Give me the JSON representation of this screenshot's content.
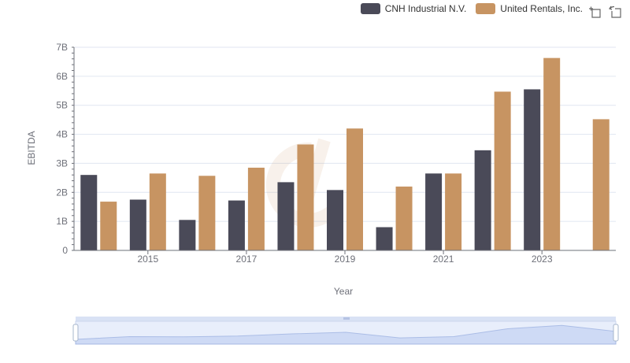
{
  "chart_data": {
    "type": "bar",
    "x": [
      2014,
      2015,
      2016,
      2017,
      2018,
      2019,
      2020,
      2021,
      2022,
      2023,
      2024
    ],
    "xticks": [
      "2015",
      "2017",
      "2019",
      "2021",
      "2023"
    ],
    "yticks": [
      "0",
      "1B",
      "2B",
      "3B",
      "4B",
      "5B",
      "6B",
      "7B"
    ],
    "series": [
      {
        "name": "CNH Industrial N.V.",
        "color": "#4a4a58",
        "values": [
          2.6,
          1.75,
          1.05,
          1.72,
          2.35,
          2.08,
          0.8,
          2.65,
          3.45,
          5.55,
          null
        ]
      },
      {
        "name": "United Rentals, Inc.",
        "color": "#c79462",
        "values": [
          1.68,
          2.65,
          2.57,
          2.85,
          3.65,
          4.2,
          2.2,
          2.65,
          5.47,
          6.63,
          4.52
        ]
      }
    ],
    "xlabel": "Year",
    "ylabel": "EBITDA",
    "ylim": [
      0,
      7
    ],
    "y_unit": "B",
    "grid": true,
    "legend_position": "top-right"
  },
  "toolbox": {
    "zoom_icon": "zoom-icon",
    "reset_icon": "restore-icon"
  },
  "datazoom": {
    "range_start": 0,
    "range_end": 100
  }
}
